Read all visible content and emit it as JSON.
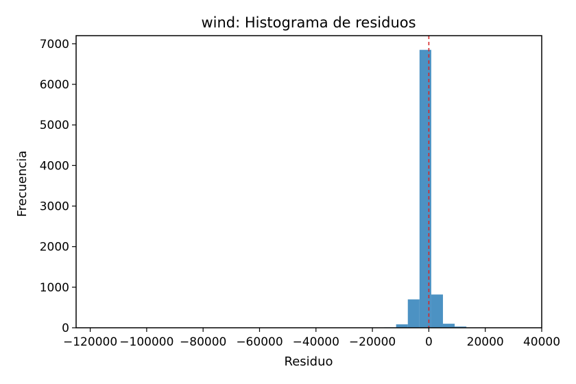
{
  "chart_data": {
    "type": "bar",
    "title": "wind: Histograma de residuos",
    "xlabel": "Residuo",
    "ylabel": "Frecuencia",
    "xlim": [
      -125000,
      40000
    ],
    "ylim": [
      0,
      7200
    ],
    "x_ticks": [
      -120000,
      -100000,
      -80000,
      -60000,
      -40000,
      -20000,
      0,
      20000,
      40000
    ],
    "x_tick_labels": [
      "−120000",
      "−100000",
      "−80000",
      "−60000",
      "−40000",
      "−20000",
      "0",
      "20000",
      "40000"
    ],
    "y_ticks": [
      0,
      1000,
      2000,
      3000,
      4000,
      5000,
      6000,
      7000
    ],
    "y_tick_labels": [
      "0",
      "1000",
      "2000",
      "3000",
      "4000",
      "5000",
      "6000",
      "7000"
    ],
    "bin_width": 4150,
    "bins": [
      {
        "start": -119500,
        "count": 1
      },
      {
        "start": -115350,
        "count": 0
      },
      {
        "start": -111200,
        "count": 0
      },
      {
        "start": -107050,
        "count": 0
      },
      {
        "start": -102900,
        "count": 0
      },
      {
        "start": -98750,
        "count": 0
      },
      {
        "start": -94600,
        "count": 0
      },
      {
        "start": -90450,
        "count": 0
      },
      {
        "start": -86300,
        "count": 0
      },
      {
        "start": -82150,
        "count": 0
      },
      {
        "start": -78000,
        "count": 0
      },
      {
        "start": -73850,
        "count": 0
      },
      {
        "start": -69700,
        "count": 0
      },
      {
        "start": -65550,
        "count": 0
      },
      {
        "start": -61400,
        "count": 0
      },
      {
        "start": -57250,
        "count": 0
      },
      {
        "start": -53100,
        "count": 0
      },
      {
        "start": -48950,
        "count": 0
      },
      {
        "start": -44800,
        "count": 0
      },
      {
        "start": -40650,
        "count": 0
      },
      {
        "start": -36500,
        "count": 0
      },
      {
        "start": -32350,
        "count": 0
      },
      {
        "start": -28200,
        "count": 2
      },
      {
        "start": -24050,
        "count": 3
      },
      {
        "start": -19900,
        "count": 5
      },
      {
        "start": -15750,
        "count": 10
      },
      {
        "start": -11600,
        "count": 85
      },
      {
        "start": -7450,
        "count": 700
      },
      {
        "start": -3300,
        "count": 6850
      },
      {
        "start": 850,
        "count": 820
      },
      {
        "start": 5000,
        "count": 100
      },
      {
        "start": 9150,
        "count": 30
      },
      {
        "start": 13300,
        "count": 8
      },
      {
        "start": 17450,
        "count": 3
      },
      {
        "start": 21600,
        "count": 2
      },
      {
        "start": 25750,
        "count": 1
      },
      {
        "start": 29900,
        "count": 1
      }
    ],
    "bar_color": "#1f77b4",
    "bar_opacity": 0.8,
    "reference_line": {
      "x": 0,
      "color": "#d62728",
      "style": "dashed"
    },
    "grid": false,
    "legend": false
  }
}
